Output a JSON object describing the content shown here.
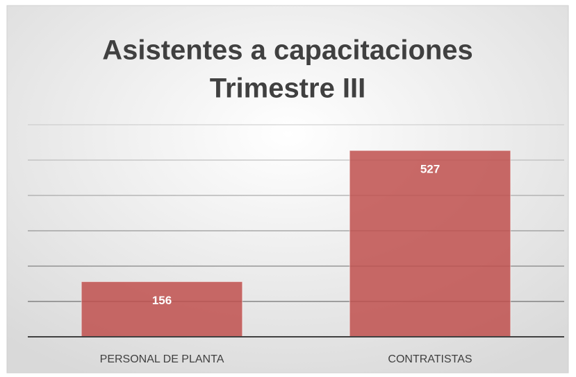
{
  "chart_data": {
    "type": "bar",
    "title": [
      "Asistentes a capacitaciones",
      "Trimestre III"
    ],
    "categories": [
      "PERSONAL DE PLANTA",
      "CONTRATISTAS"
    ],
    "values": [
      156,
      527
    ],
    "color": "#c0504d",
    "ylim": [
      0,
      600
    ],
    "yticks": [
      0,
      100,
      200,
      300,
      400,
      500,
      600
    ],
    "grid": true
  }
}
